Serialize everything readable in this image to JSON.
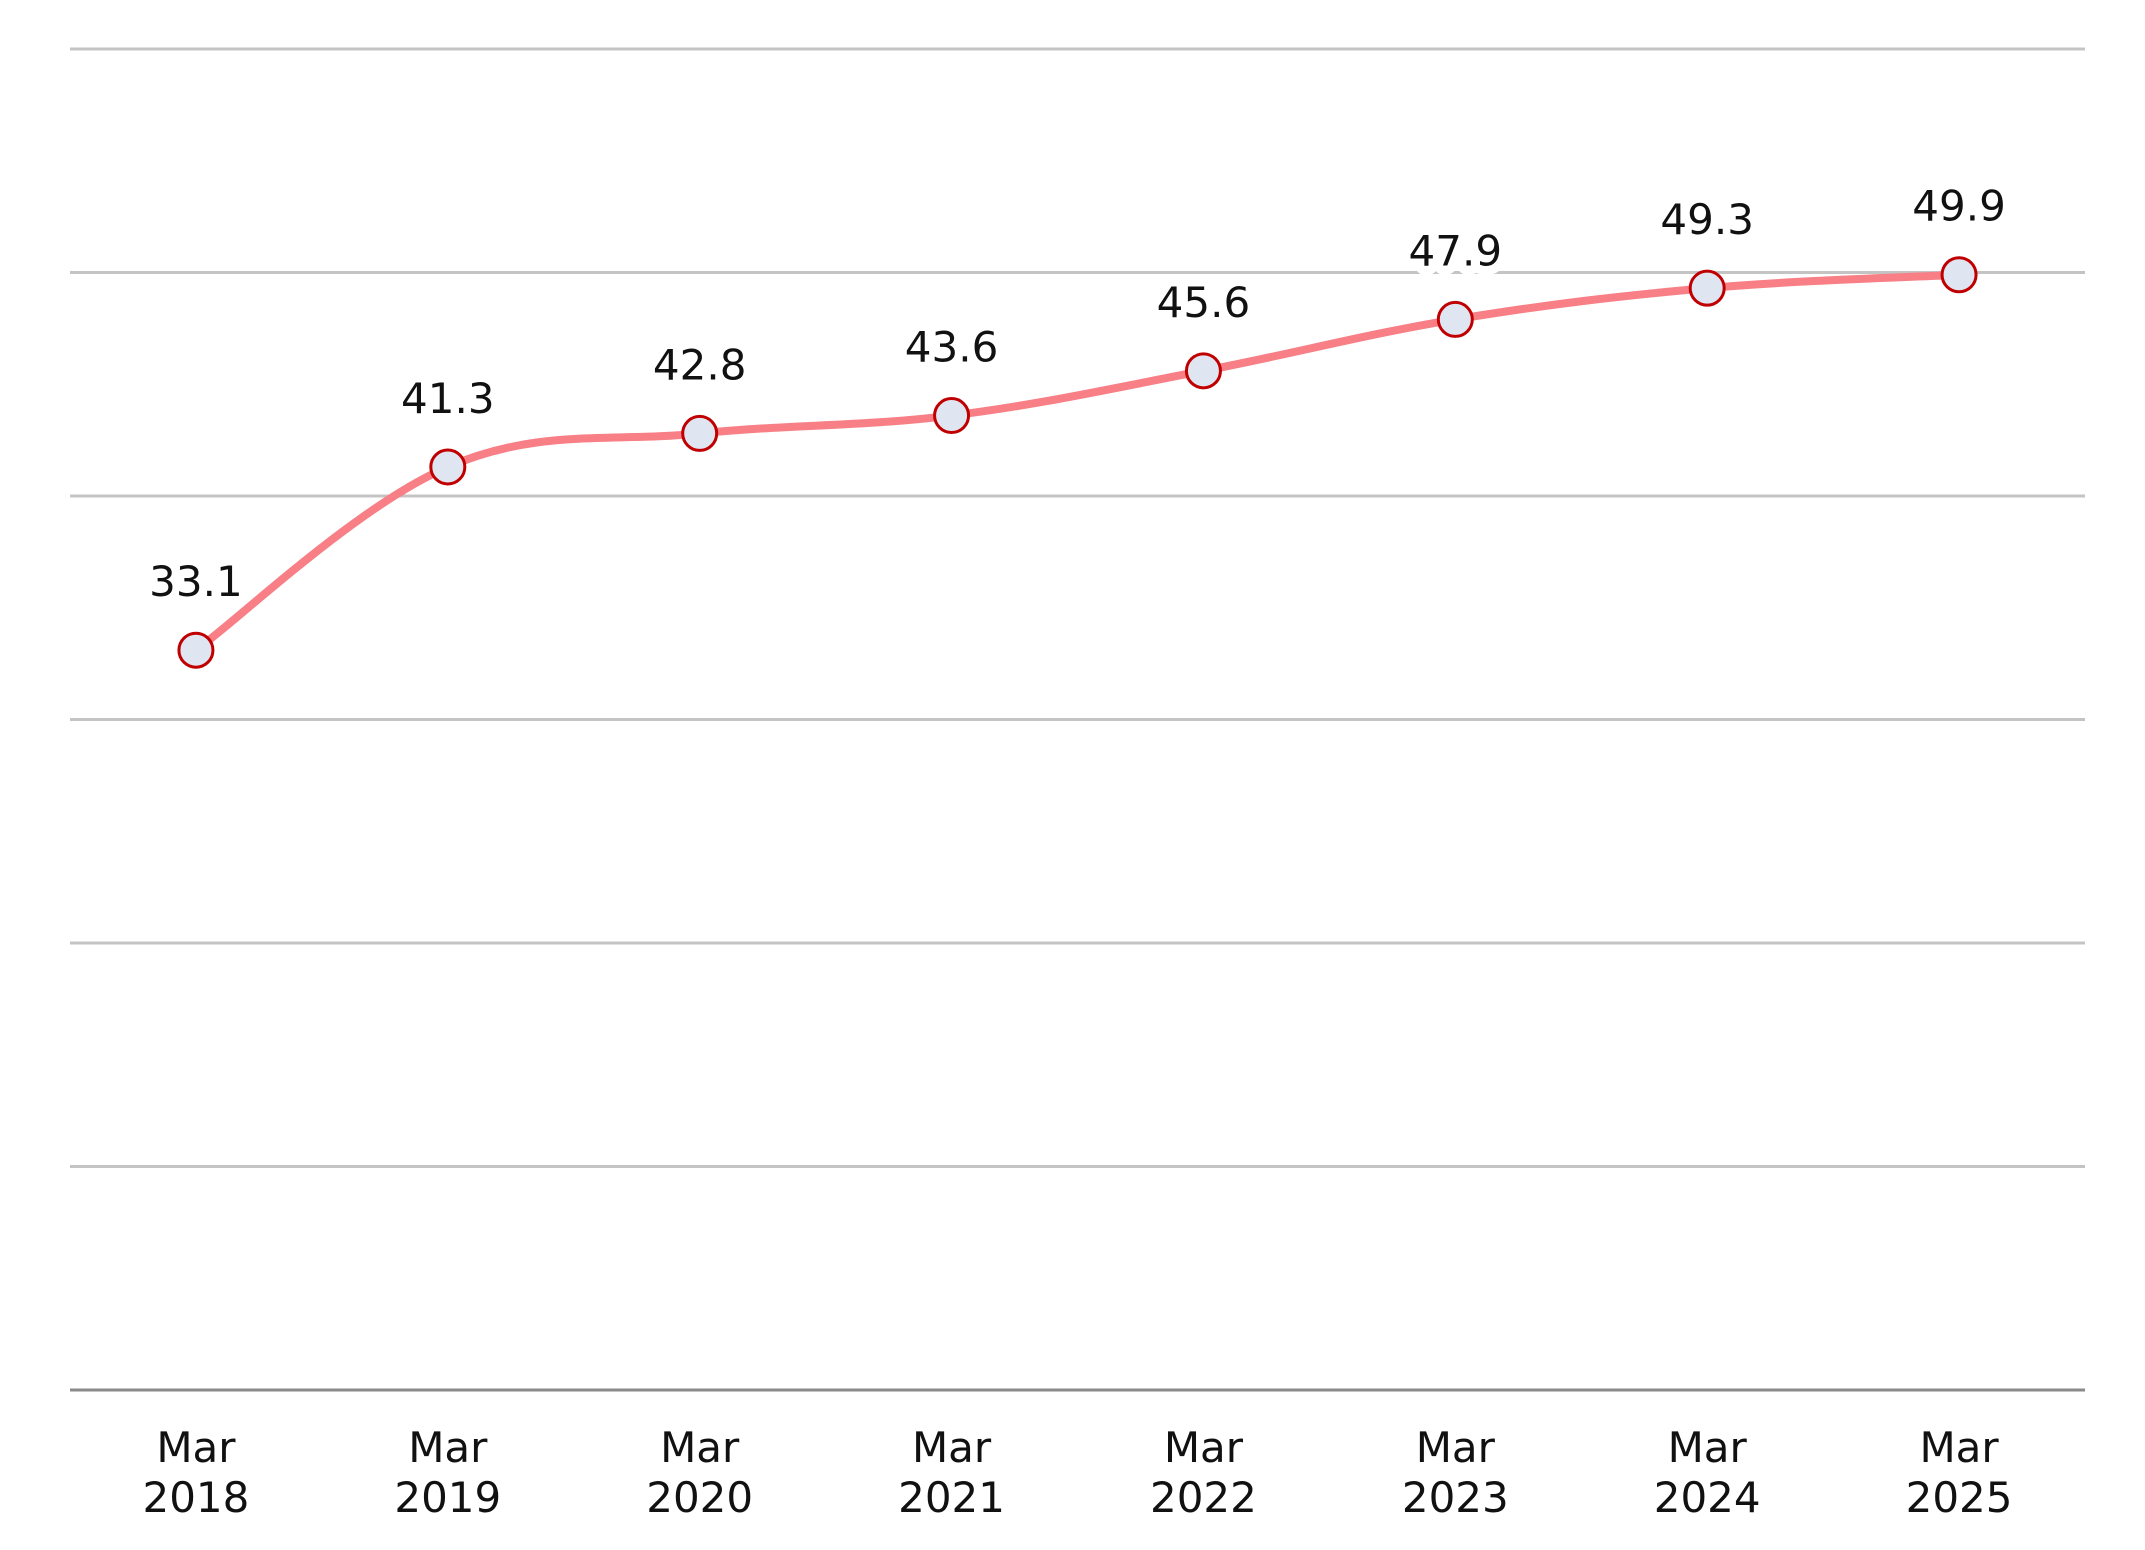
{
  "chart_data": {
    "type": "line",
    "categories": [
      [
        "Mar",
        "2018"
      ],
      [
        "Mar",
        "2019"
      ],
      [
        "Mar",
        "2020"
      ],
      [
        "Mar",
        "2021"
      ],
      [
        "Mar",
        "2022"
      ],
      [
        "Mar",
        "2023"
      ],
      [
        "Mar",
        "2024"
      ],
      [
        "Mar",
        "2025"
      ]
    ],
    "series": [
      {
        "values": [
          33.1,
          41.3,
          42.8,
          43.6,
          45.6,
          47.9,
          49.3,
          49.9
        ],
        "labels": [
          "33.1",
          "41.3",
          "42.8",
          "43.6",
          "45.6",
          "47.9",
          "49.3",
          "49.9"
        ],
        "line_color": "#f77f85",
        "marker_fill": "#dfe6f1",
        "marker_stroke": "#c00000"
      }
    ],
    "title": "",
    "xlabel": "",
    "ylabel": "",
    "ylim": [
      0,
      60
    ],
    "grid": true,
    "gridline_count": 6,
    "smooth": true,
    "legend": "none"
  }
}
